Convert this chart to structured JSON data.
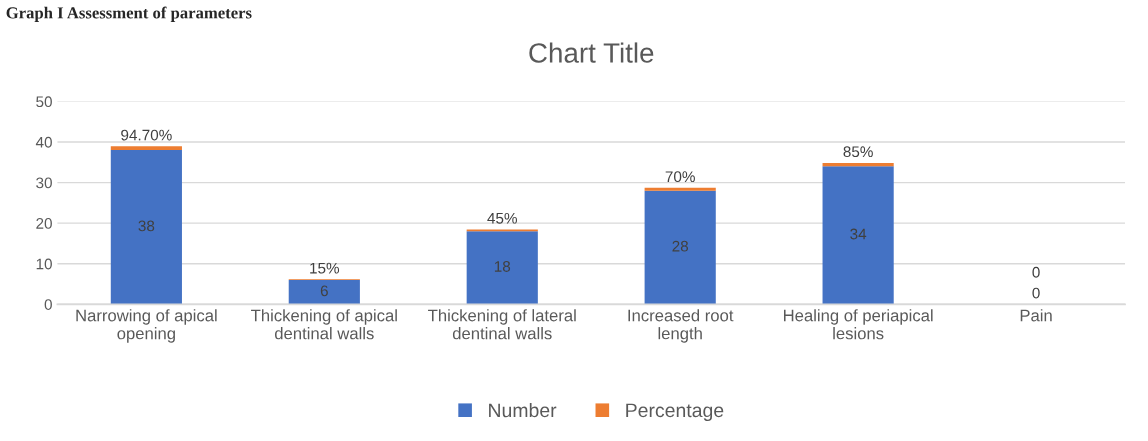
{
  "chart_data": {
    "type": "bar",
    "title": "Chart Title",
    "annotations": [
      "Graph I Assessment of parameters"
    ],
    "categories": [
      "Narrowing of apical\nopening",
      "Thickening of apical\ndentinal walls",
      "Thickening of lateral\ndentinal walls",
      "Increased root\nlength",
      "Healing of periapical\nlesions",
      "Pain"
    ],
    "stacked": true,
    "series": [
      {
        "name": "Number",
        "color": "#4472c4",
        "values": [
          38,
          6,
          18,
          28,
          34,
          0
        ],
        "value_labels": [
          "38",
          "6",
          "18",
          "28",
          "34",
          "0"
        ]
      },
      {
        "name": "Percentage",
        "color": "#ed7d31",
        "values": [
          0.947,
          0.15,
          0.45,
          0.7,
          0.85,
          0
        ],
        "value_labels": [
          "94.70%",
          "15%",
          "45%",
          "70%",
          "85%",
          "0"
        ]
      }
    ],
    "ylim": [
      0,
      50
    ],
    "yticks": [
      0,
      10,
      20,
      30,
      40,
      50
    ],
    "grid": "y",
    "legend": "bottom"
  }
}
